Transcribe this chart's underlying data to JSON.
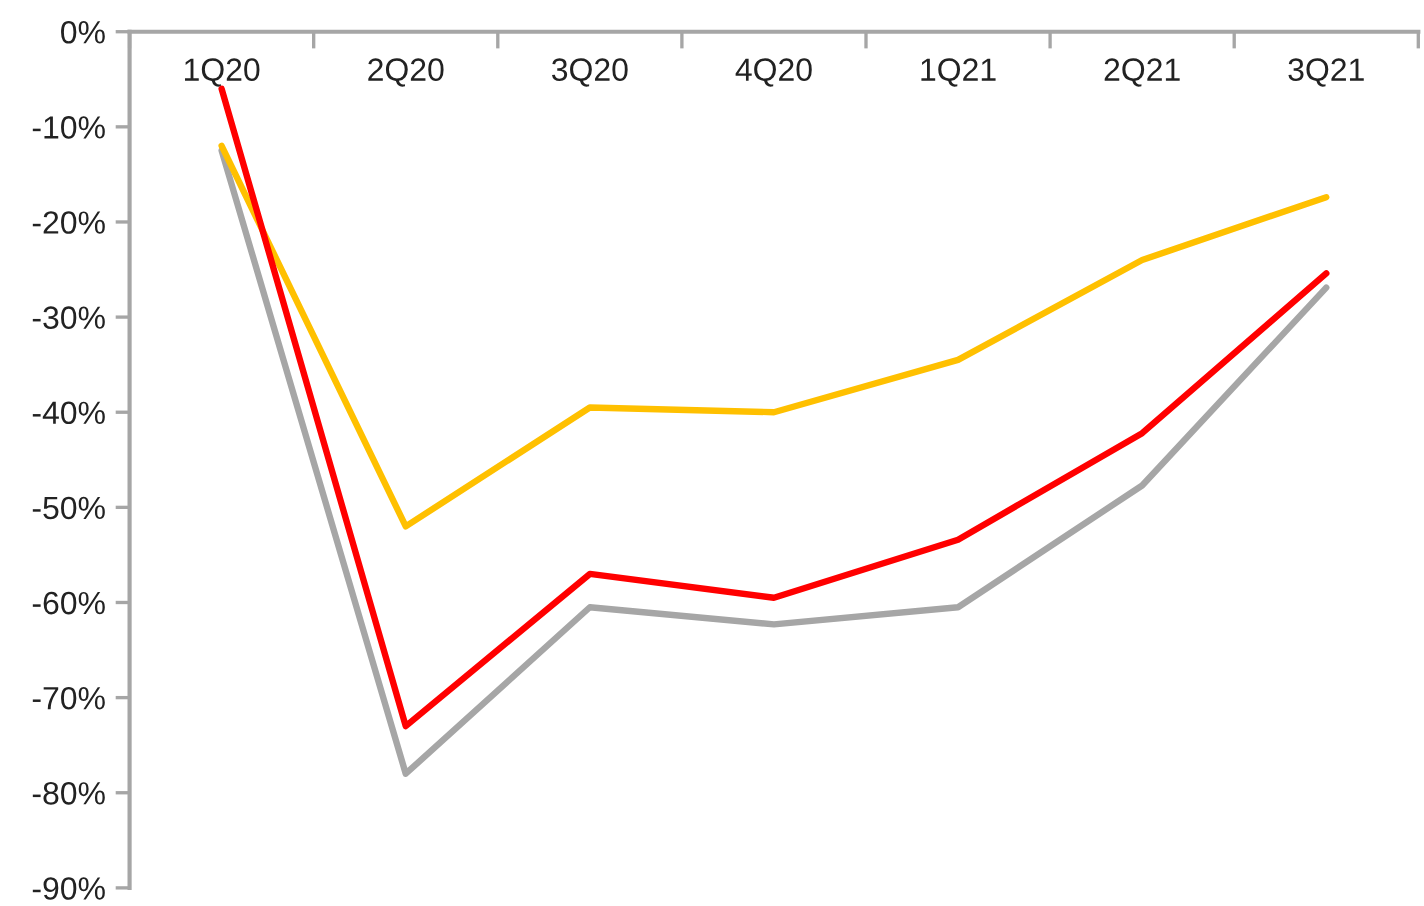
{
  "chart_data": {
    "type": "line",
    "categories": [
      "1Q20",
      "2Q20",
      "3Q20",
      "4Q20",
      "1Q21",
      "2Q21",
      "3Q21"
    ],
    "series": [
      {
        "color": "#a6a6a6",
        "values": [
          -12.5,
          -78,
          -60.5,
          -62.3,
          -60.5,
          -47.7,
          -26.9
        ]
      },
      {
        "color": "#ffc000",
        "values": [
          -12,
          -52,
          -39.5,
          -40,
          -34.5,
          -24,
          -17.4
        ]
      },
      {
        "color": "#ff0000",
        "values": [
          -6,
          -73,
          -57,
          -59.5,
          -53.4,
          -42.2,
          -25.4
        ]
      }
    ],
    "ylim": [
      -90,
      0
    ],
    "yticks": [
      {
        "value": 0,
        "label": "0%"
      },
      {
        "value": -10,
        "label": "-10%"
      },
      {
        "value": -20,
        "label": "-20%"
      },
      {
        "value": -30,
        "label": "-30%"
      },
      {
        "value": -40,
        "label": "-40%"
      },
      {
        "value": -50,
        "label": "-50%"
      },
      {
        "value": -60,
        "label": "-60%"
      },
      {
        "value": -70,
        "label": "-70%"
      },
      {
        "value": -80,
        "label": "-80%"
      },
      {
        "value": -90,
        "label": "-90%"
      }
    ],
    "grid": false,
    "marker": "none",
    "line_style": "solid"
  }
}
